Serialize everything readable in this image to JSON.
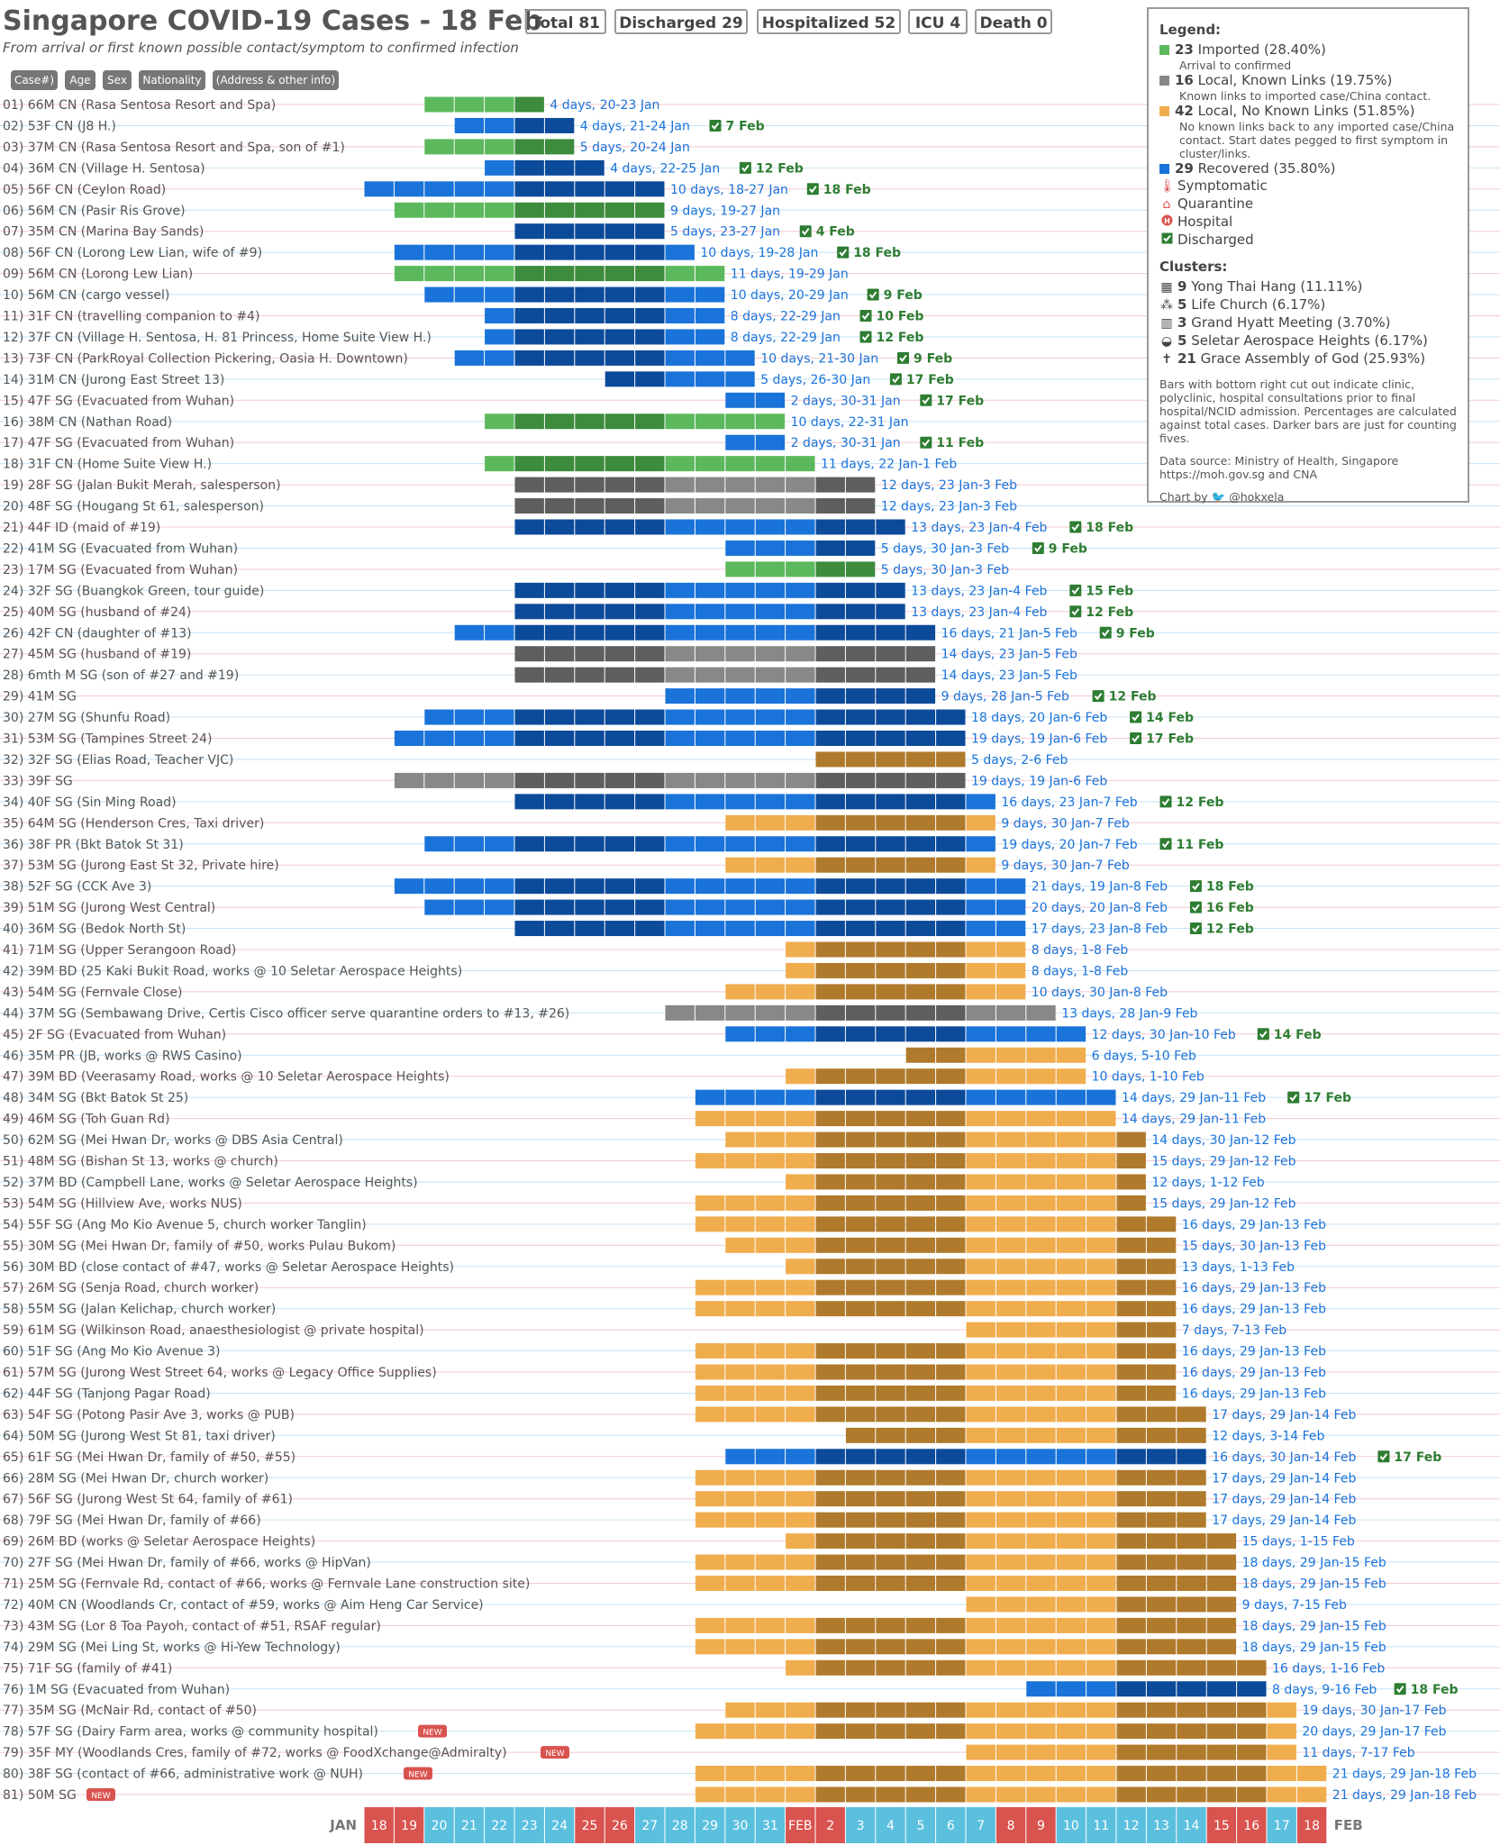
{
  "header": {
    "title": "Singapore COVID-19 Cases - 18 Feb",
    "subtitle": "From arrival or first known possible contact/symptom to confirmed infection",
    "stats": [
      "Total 81",
      "Discharged 29",
      "Hospitalized 52",
      "ICU 4",
      "Death 0"
    ],
    "column_pills": [
      "Case#)",
      "Age",
      "Sex",
      "Nationality",
      "(Address & other info)"
    ]
  },
  "legend": {
    "title": "Legend:",
    "items": [
      {
        "count": "23",
        "label": "Imported (28.40%)",
        "desc": "Arrival to confirmed",
        "color": "#5cb85c"
      },
      {
        "count": "16",
        "label": "Local, Known Links (19.75%)",
        "desc": "Known links to imported case/China contact.",
        "color": "#888888"
      },
      {
        "count": "42",
        "label": "Local, No Known Links (51.85%)",
        "desc": "No known links back to any imported case/China contact. Start dates pegged to first symptom in cluster/links.",
        "color": "#f0ad4e"
      },
      {
        "count": "29",
        "label": "Recovered (35.80%)",
        "desc": "",
        "color": "#1a73d9"
      }
    ],
    "markers": [
      "Symptomatic",
      "Quarantine",
      "Hospital",
      "Discharged"
    ],
    "clusters_title": "Clusters:",
    "clusters": [
      {
        "count": "9",
        "label": "Yong Thai Hang (11.11%)"
      },
      {
        "count": "5",
        "label": "Life Church (6.17%)"
      },
      {
        "count": "3",
        "label": "Grand Hyatt Meeting (3.70%)"
      },
      {
        "count": "5",
        "label": "Seletar Aerospace Heights (6.17%)"
      },
      {
        "count": "21",
        "label": "Grace Assembly of God (25.93%)"
      }
    ],
    "note": "Bars with bottom right cut out indicate clinic, polyclinic, hospital consultations prior to final hospital/NCID admission. Percentages are calculated against total cases. Darker bars are just for counting fives.",
    "source": "Data source: Ministry of Health, Singapore https://moh.gov.sg and CNA",
    "credit": "Chart by",
    "handle": "@hokxela"
  },
  "chart_data": {
    "type": "gantt",
    "axis_start": "JAN",
    "axis_end": "FEB",
    "dates": [
      "18",
      "19",
      "20",
      "21",
      "22",
      "23",
      "24",
      "25",
      "26",
      "27",
      "28",
      "29",
      "30",
      "31",
      "FEB",
      "2",
      "3",
      "4",
      "5",
      "6",
      "7",
      "8",
      "9",
      "10",
      "11",
      "12",
      "13",
      "14",
      "15",
      "16",
      "17",
      "18"
    ],
    "weekend_dates": [
      "18",
      "19",
      "25",
      "26",
      "FEB",
      "2",
      "8",
      "9",
      "15",
      "16"
    ],
    "cases": [
      {
        "label": "01) 66M CN (Rasa Sentosa Resort and Spa)",
        "start": 20,
        "end": 23,
        "type": "imported",
        "dur": "4 days, 20-23 Jan"
      },
      {
        "label": "02) 53F CN (J8 H.)",
        "start": 21,
        "end": 24,
        "type": "recovered",
        "dur": "4 days, 21-24 Jan",
        "discharged": "7 Feb"
      },
      {
        "label": "03) 37M CN (Rasa Sentosa Resort and Spa, son of #1)",
        "start": 20,
        "end": 24,
        "type": "imported",
        "dur": "5 days, 20-24 Jan"
      },
      {
        "label": "04) 36M CN (Village H. Sentosa)",
        "start": 22,
        "end": 25,
        "type": "recovered",
        "dur": "4 days, 22-25 Jan",
        "discharged": "12 Feb"
      },
      {
        "label": "05) 56F CN (Ceylon Road)",
        "start": 18,
        "end": 27,
        "type": "recovered",
        "dur": "10 days, 18-27 Jan",
        "discharged": "18 Feb"
      },
      {
        "label": "06) 56M CN (Pasir Ris Grove)",
        "start": 19,
        "end": 27,
        "type": "imported",
        "dur": "9 days, 19-27 Jan"
      },
      {
        "label": "07) 35M CN (Marina Bay Sands)",
        "start": 23,
        "end": 27,
        "type": "recovered",
        "dur": "5 days, 23-27 Jan",
        "discharged": "4 Feb"
      },
      {
        "label": "08) 56F CN (Lorong Lew Lian, wife of #9)",
        "start": 19,
        "end": 28,
        "type": "recovered",
        "dur": "10 days, 19-28 Jan",
        "discharged": "18 Feb"
      },
      {
        "label": "09) 56M CN (Lorong Lew Lian)",
        "start": 19,
        "end": 29,
        "type": "imported",
        "dur": "11 days, 19-29 Jan"
      },
      {
        "label": "10) 56M CN (cargo vessel)",
        "start": 20,
        "end": 29,
        "type": "recovered",
        "dur": "10 days, 20-29 Jan",
        "discharged": "9 Feb"
      },
      {
        "label": "11) 31F CN (travelling companion to #4)",
        "start": 22,
        "end": 29,
        "type": "recovered",
        "dur": "8 days, 22-29 Jan",
        "discharged": "10 Feb"
      },
      {
        "label": "12) 37F CN (Village H. Sentosa, H. 81 Princess, Home Suite View H.)",
        "start": 22,
        "end": 29,
        "type": "recovered",
        "dur": "8 days, 22-29 Jan",
        "discharged": "12 Feb"
      },
      {
        "label": "13) 73F CN (ParkRoyal Collection Pickering, Oasia H. Downtown)",
        "start": 21,
        "end": 30,
        "type": "recovered",
        "dur": "10 days, 21-30 Jan",
        "discharged": "9 Feb"
      },
      {
        "label": "14) 31M CN (Jurong East Street 13)",
        "start": 26,
        "end": 30,
        "type": "recovered",
        "dur": "5 days, 26-30 Jan",
        "discharged": "17 Feb"
      },
      {
        "label": "15) 47F SG (Evacuated from Wuhan)",
        "start": 30,
        "end": 31,
        "type": "recovered",
        "dur": "2 days, 30-31 Jan",
        "discharged": "17 Feb"
      },
      {
        "label": "16) 38M CN (Nathan Road)",
        "start": 22,
        "end": 31,
        "type": "imported",
        "dur": "10 days, 22-31 Jan"
      },
      {
        "label": "17) 47F SG (Evacuated from Wuhan)",
        "start": 30,
        "end": 31,
        "type": "recovered",
        "dur": "2 days, 30-31 Jan",
        "discharged": "11 Feb"
      },
      {
        "label": "18) 31F CN (Home Suite View H.)",
        "start": 22,
        "end": 32,
        "type": "imported",
        "dur": "11 days, 22 Jan-1 Feb"
      },
      {
        "label": "19) 28F SG (Jalan Bukit Merah, salesperson)",
        "start": 23,
        "end": 34,
        "type": "known",
        "dur": "12 days, 23 Jan-3 Feb"
      },
      {
        "label": "20) 48F SG (Hougang St 61, salesperson)",
        "start": 23,
        "end": 34,
        "type": "known",
        "dur": "12 days, 23 Jan-3 Feb"
      },
      {
        "label": "21) 44F ID (maid of #19)",
        "start": 23,
        "end": 35,
        "type": "recovered",
        "dur": "13 days, 23 Jan-4 Feb",
        "discharged": "18 Feb"
      },
      {
        "label": "22) 41M SG (Evacuated from Wuhan)",
        "start": 30,
        "end": 34,
        "type": "recovered",
        "dur": "5 days, 30 Jan-3 Feb",
        "discharged": "9 Feb"
      },
      {
        "label": "23) 17M SG (Evacuated from Wuhan)",
        "start": 30,
        "end": 34,
        "type": "imported",
        "dur": "5 days, 30 Jan-3 Feb"
      },
      {
        "label": "24) 32F SG (Buangkok Green, tour guide)",
        "start": 23,
        "end": 35,
        "type": "recovered",
        "dur": "13 days, 23 Jan-4 Feb",
        "discharged": "15 Feb"
      },
      {
        "label": "25) 40M SG (husband of #24)",
        "start": 23,
        "end": 35,
        "type": "recovered",
        "dur": "13 days, 23 Jan-4 Feb",
        "discharged": "12 Feb"
      },
      {
        "label": "26) 42F CN (daughter of #13)",
        "start": 21,
        "end": 36,
        "type": "recovered",
        "dur": "16 days, 21 Jan-5 Feb",
        "discharged": "9 Feb"
      },
      {
        "label": "27) 45M SG (husband of #19)",
        "start": 23,
        "end": 36,
        "type": "known",
        "dur": "14 days, 23 Jan-5 Feb"
      },
      {
        "label": "28) 6mth M SG (son of #27 and #19)",
        "start": 23,
        "end": 36,
        "type": "known",
        "dur": "14 days, 23 Jan-5 Feb"
      },
      {
        "label": "29) 41M SG",
        "start": 28,
        "end": 36,
        "type": "recovered",
        "dur": "9 days, 28 Jan-5 Feb",
        "discharged": "12 Feb"
      },
      {
        "label": "30) 27M SG (Shunfu Road)",
        "start": 20,
        "end": 37,
        "type": "recovered",
        "dur": "18 days, 20 Jan-6 Feb",
        "discharged": "14 Feb"
      },
      {
        "label": "31) 53M SG (Tampines Street 24)",
        "start": 19,
        "end": 37,
        "type": "recovered",
        "dur": "19 days, 19 Jan-6 Feb",
        "discharged": "17 Feb"
      },
      {
        "label": "32) 32F SG (Elias Road, Teacher VJC)",
        "start": 33,
        "end": 37,
        "type": "noknown",
        "dur": "5 days, 2-6 Feb"
      },
      {
        "label": "33) 39F SG",
        "start": 19,
        "end": 37,
        "type": "known",
        "dur": "19 days, 19 Jan-6 Feb"
      },
      {
        "label": "34) 40F SG (Sin Ming Road)",
        "start": 23,
        "end": 38,
        "type": "recovered",
        "dur": "16 days, 23 Jan-7 Feb",
        "discharged": "12 Feb"
      },
      {
        "label": "35) 64M SG (Henderson Cres, Taxi driver)",
        "start": 30,
        "end": 38,
        "type": "noknown",
        "dur": "9 days, 30 Jan-7 Feb"
      },
      {
        "label": "36) 38F PR (Bkt Batok St 31)",
        "start": 20,
        "end": 38,
        "type": "recovered",
        "dur": "19 days, 20 Jan-7 Feb",
        "discharged": "11 Feb"
      },
      {
        "label": "37) 53M SG (Jurong East St 32, Private hire)",
        "start": 30,
        "end": 38,
        "type": "noknown",
        "dur": "9 days, 30 Jan-7 Feb"
      },
      {
        "label": "38) 52F SG (CCK Ave 3)",
        "start": 19,
        "end": 39,
        "type": "recovered",
        "dur": "21 days, 19 Jan-8 Feb",
        "discharged": "18 Feb"
      },
      {
        "label": "39) 51M SG (Jurong West Central)",
        "start": 20,
        "end": 39,
        "type": "recovered",
        "dur": "20 days, 20 Jan-8 Feb",
        "discharged": "16 Feb"
      },
      {
        "label": "40) 36M SG (Bedok North St)",
        "start": 23,
        "end": 39,
        "type": "recovered",
        "dur": "17 days, 23 Jan-8 Feb",
        "discharged": "12 Feb"
      },
      {
        "label": "41) 71M SG (Upper Serangoon Road)",
        "start": 32,
        "end": 39,
        "type": "noknown",
        "dur": "8 days, 1-8 Feb"
      },
      {
        "label": "42) 39M BD (25 Kaki Bukit Road, works @ 10 Seletar Aerospace Heights)",
        "start": 32,
        "end": 39,
        "type": "noknown",
        "dur": "8 days, 1-8 Feb"
      },
      {
        "label": "43) 54M SG (Fernvale Close)",
        "start": 30,
        "end": 39,
        "type": "noknown",
        "dur": "10 days, 30 Jan-8 Feb"
      },
      {
        "label": "44) 37M SG (Sembawang Drive, Certis Cisco officer serve quarantine orders to #13, #26)",
        "start": 28,
        "end": 40,
        "type": "known",
        "dur": "13 days, 28 Jan-9 Feb"
      },
      {
        "label": "45) 2F SG (Evacuated from Wuhan)",
        "start": 30,
        "end": 41,
        "type": "recovered",
        "dur": "12 days, 30 Jan-10 Feb",
        "discharged": "14 Feb"
      },
      {
        "label": "46) 35M PR (JB, works @ RWS Casino)",
        "start": 36,
        "end": 41,
        "type": "noknown",
        "dur": "6 days, 5-10 Feb"
      },
      {
        "label": "47) 39M BD (Veerasamy Road, works @ 10 Seletar Aerospace Heights)",
        "start": 32,
        "end": 41,
        "type": "noknown",
        "dur": "10 days, 1-10 Feb"
      },
      {
        "label": "48) 34M SG (Bkt Batok St 25)",
        "start": 29,
        "end": 42,
        "type": "recovered",
        "dur": "14 days, 29 Jan-11 Feb",
        "discharged": "17 Feb"
      },
      {
        "label": "49) 46M SG (Toh Guan Rd)",
        "start": 29,
        "end": 42,
        "type": "noknown",
        "dur": "14 days, 29 Jan-11 Feb"
      },
      {
        "label": "50) 62M SG (Mei Hwan Dr, works @ DBS Asia Central)",
        "start": 30,
        "end": 43,
        "type": "noknown",
        "dur": "14 days, 30 Jan-12 Feb"
      },
      {
        "label": "51) 48M SG (Bishan St 13, works @ church)",
        "start": 29,
        "end": 43,
        "type": "noknown",
        "dur": "15 days, 29 Jan-12 Feb"
      },
      {
        "label": "52) 37M BD (Campbell Lane, works @ Seletar Aerospace Heights)",
        "start": 32,
        "end": 43,
        "type": "noknown",
        "dur": "12 days, 1-12 Feb"
      },
      {
        "label": "53) 54M SG (Hillview Ave, works NUS)",
        "start": 29,
        "end": 43,
        "type": "noknown",
        "dur": "15 days, 29 Jan-12 Feb"
      },
      {
        "label": "54) 55F SG (Ang Mo Kio Avenue 5, church worker Tanglin)",
        "start": 29,
        "end": 44,
        "type": "noknown",
        "dur": "16 days, 29 Jan-13 Feb"
      },
      {
        "label": "55) 30M SG (Mei Hwan Dr, family of #50, works Pulau Bukom)",
        "start": 30,
        "end": 44,
        "type": "noknown",
        "dur": "15 days, 30 Jan-13 Feb"
      },
      {
        "label": "56) 30M BD (close contact of #47, works @ Seletar Aerospace Heights)",
        "start": 32,
        "end": 44,
        "type": "noknown",
        "dur": "13 days, 1-13 Feb"
      },
      {
        "label": "57) 26M SG (Senja Road, church worker)",
        "start": 29,
        "end": 44,
        "type": "noknown",
        "dur": "16 days, 29 Jan-13 Feb"
      },
      {
        "label": "58) 55M SG (Jalan Kelichap, church worker)",
        "start": 29,
        "end": 44,
        "type": "noknown",
        "dur": "16 days, 29 Jan-13 Feb"
      },
      {
        "label": "59) 61M SG (Wilkinson Road, anaesthesiologist @ private hospital)",
        "start": 38,
        "end": 44,
        "type": "noknown",
        "dur": "7 days, 7-13 Feb"
      },
      {
        "label": "60) 51F SG (Ang Mo Kio Avenue 3)",
        "start": 29,
        "end": 44,
        "type": "noknown",
        "dur": "16 days, 29 Jan-13 Feb"
      },
      {
        "label": "61) 57M SG (Jurong West Street 64, works @ Legacy Office Supplies)",
        "start": 29,
        "end": 44,
        "type": "noknown",
        "dur": "16 days, 29 Jan-13 Feb"
      },
      {
        "label": "62) 44F SG (Tanjong Pagar Road)",
        "start": 29,
        "end": 44,
        "type": "noknown",
        "dur": "16 days, 29 Jan-13 Feb"
      },
      {
        "label": "63) 54F SG (Potong Pasir Ave 3, works @ PUB)",
        "start": 29,
        "end": 45,
        "type": "noknown",
        "dur": "17 days, 29 Jan-14 Feb"
      },
      {
        "label": "64) 50M SG (Jurong West St 81, taxi driver)",
        "start": 34,
        "end": 45,
        "type": "noknown",
        "dur": "12 days, 3-14 Feb"
      },
      {
        "label": "65) 61F SG (Mei Hwan Dr, family of #50, #55)",
        "start": 30,
        "end": 45,
        "type": "recovered",
        "dur": "16 days, 30 Jan-14 Feb",
        "discharged": "17 Feb"
      },
      {
        "label": "66) 28M SG (Mei Hwan Dr, church worker)",
        "start": 29,
        "end": 45,
        "type": "noknown",
        "dur": "17 days, 29 Jan-14 Feb"
      },
      {
        "label": "67) 56F SG (Jurong West St 64, family of #61)",
        "start": 29,
        "end": 45,
        "type": "noknown",
        "dur": "17 days, 29 Jan-14 Feb"
      },
      {
        "label": "68) 79F SG (Mei Hwan Dr, family of #66)",
        "start": 29,
        "end": 45,
        "type": "noknown",
        "dur": "17 days, 29 Jan-14 Feb"
      },
      {
        "label": "69) 26M BD (works @ Seletar Aerospace Heights)",
        "start": 32,
        "end": 46,
        "type": "noknown",
        "dur": "15 days, 1-15 Feb"
      },
      {
        "label": "70) 27F SG (Mei Hwan Dr, family of #66, works @ HipVan)",
        "start": 29,
        "end": 46,
        "type": "noknown",
        "dur": "18 days, 29 Jan-15 Feb"
      },
      {
        "label": "71) 25M SG (Fernvale Rd, contact of #66, works @ Fernvale Lane construction site)",
        "start": 29,
        "end": 46,
        "type": "noknown",
        "dur": "18 days, 29 Jan-15 Feb"
      },
      {
        "label": "72) 40M CN (Woodlands Cr, contact of #59, works @ Aim Heng Car Service)",
        "start": 38,
        "end": 46,
        "type": "noknown",
        "dur": "9 days, 7-15 Feb"
      },
      {
        "label": "73) 43M SG (Lor 8 Toa Payoh, contact of #51, RSAF regular)",
        "start": 29,
        "end": 46,
        "type": "noknown",
        "dur": "18 days, 29 Jan-15 Feb"
      },
      {
        "label": "74) 29M SG (Mei Ling St, works @ Hi-Yew Technology)",
        "start": 29,
        "end": 46,
        "type": "noknown",
        "dur": "18 days, 29 Jan-15 Feb"
      },
      {
        "label": "75) 71F SG (family of #41)",
        "start": 32,
        "end": 47,
        "type": "noknown",
        "dur": "16 days, 1-16 Feb"
      },
      {
        "label": "76) 1M SG (Evacuated from Wuhan)",
        "start": 40,
        "end": 47,
        "type": "recovered",
        "dur": "8 days, 9-16 Feb",
        "discharged": "18 Feb"
      },
      {
        "label": "77) 35M SG (McNair Rd, contact of #50)",
        "start": 30,
        "end": 48,
        "type": "noknown",
        "dur": "19 days, 30 Jan-17 Feb"
      },
      {
        "label": "78) 57F SG (Dairy Farm area, works @ community hospital)",
        "start": 29,
        "end": 48,
        "type": "noknown",
        "dur": "20 days, 29 Jan-17 Feb",
        "new": "NEW"
      },
      {
        "label": "79) 35F MY (Woodlands Cres, family of #72, works @ FoodXchange@Admiralty)",
        "start": 38,
        "end": 48,
        "type": "noknown",
        "dur": "11 days, 7-17 Feb",
        "new": "NEW"
      },
      {
        "label": "80) 38F SG (contact of #66, administrative work @ NUH)",
        "start": 29,
        "end": 49,
        "type": "noknown",
        "dur": "21 days, 29 Jan-18 Feb",
        "new": "NEW"
      },
      {
        "label": "81) 50M SG",
        "start": 29,
        "end": 49,
        "type": "noknown",
        "dur": "21 days, 29 Jan-18 Feb",
        "new": "NEW"
      }
    ],
    "colors": {
      "imported": "#5cb85c",
      "known": "#888888",
      "noknown": "#f0ad4e",
      "recovered": "#1a73d9"
    },
    "dark_colors": {
      "imported": "#3d8b3d",
      "known": "#5e5e5e",
      "noknown": "#b07a2c",
      "recovered": "#0c4a9a"
    }
  }
}
